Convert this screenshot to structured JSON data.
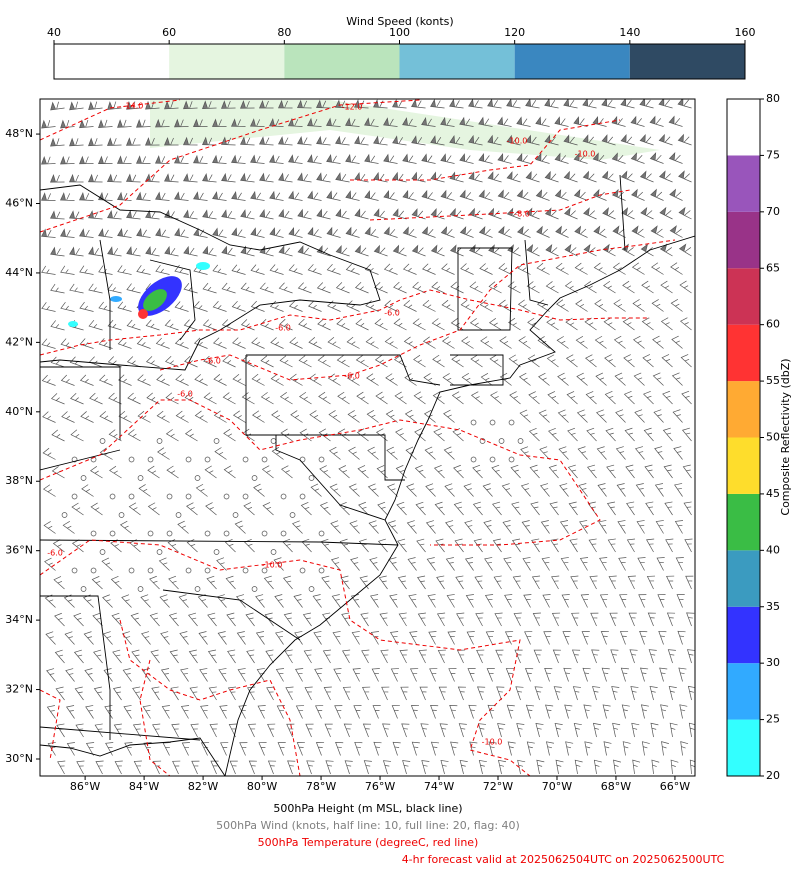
{
  "wind_colorbar": {
    "title": "Wind Speed (konts)",
    "range": [
      40,
      160
    ],
    "ticks": [
      40,
      60,
      80,
      100,
      120,
      140,
      160
    ],
    "colors": [
      "#ffffff",
      "#e5f5e0",
      "#bae4bc",
      "#74c0d8",
      "#3a87c0",
      "#2f4a63"
    ]
  },
  "reflectivity_colorbar": {
    "label": "Composite Reflectivity (dbZ)",
    "range": [
      20,
      80
    ],
    "ticks": [
      20,
      25,
      30,
      35,
      40,
      45,
      50,
      55,
      60,
      65,
      70,
      75,
      80
    ],
    "colors": [
      "#33ffff",
      "#31aaff",
      "#3333ff",
      "#3b9bc0",
      "#3abd45",
      "#fedd2c",
      "#ffaa33",
      "#ff3333",
      "#cc3355",
      "#993388",
      "#9955bb",
      "#ffffff"
    ]
  },
  "map": {
    "lon_range": [
      -87.53,
      -65.32
    ],
    "lat_range": [
      29.51,
      49.01
    ],
    "lon_ticks": [
      {
        "value": -86,
        "label": "86°W"
      },
      {
        "value": -84,
        "label": "84°W"
      },
      {
        "value": -82,
        "label": "82°W"
      },
      {
        "value": -80,
        "label": "80°W"
      },
      {
        "value": -78,
        "label": "78°W"
      },
      {
        "value": -76,
        "label": "76°W"
      },
      {
        "value": -74,
        "label": "74°W"
      },
      {
        "value": -72,
        "label": "72°W"
      },
      {
        "value": -70,
        "label": "70°W"
      },
      {
        "value": -68,
        "label": "68°W"
      },
      {
        "value": -66,
        "label": "66°W"
      }
    ],
    "lat_ticks": [
      {
        "value": 48,
        "label": "48°N"
      },
      {
        "value": 46,
        "label": "46°N"
      },
      {
        "value": 44,
        "label": "44°N"
      },
      {
        "value": 42,
        "label": "42°N"
      },
      {
        "value": 40,
        "label": "40°N"
      },
      {
        "value": 38,
        "label": "38°N"
      },
      {
        "value": 36,
        "label": "36°N"
      },
      {
        "value": 34,
        "label": "34°N"
      },
      {
        "value": 32,
        "label": "32°N"
      },
      {
        "value": 30,
        "label": "30°N"
      }
    ],
    "contour_labels": [
      "-14.0",
      "-12.0",
      "-10.0",
      "-10.0",
      "-8.0",
      "-6.0",
      "-6.0",
      "-6.0",
      "-6.0",
      "-6.0",
      "-10.0",
      "-6.0",
      "-10.0"
    ]
  },
  "captions": [
    "500hPa Height (m MSL, black line)",
    "500hPa Wind (knots, half line: 10, full line: 20, flag: 40)",
    "500hPa Temperature (degreeC, red line)",
    "4-hr forecast valid at 2025062504UTC on 2025062500UTC"
  ]
}
